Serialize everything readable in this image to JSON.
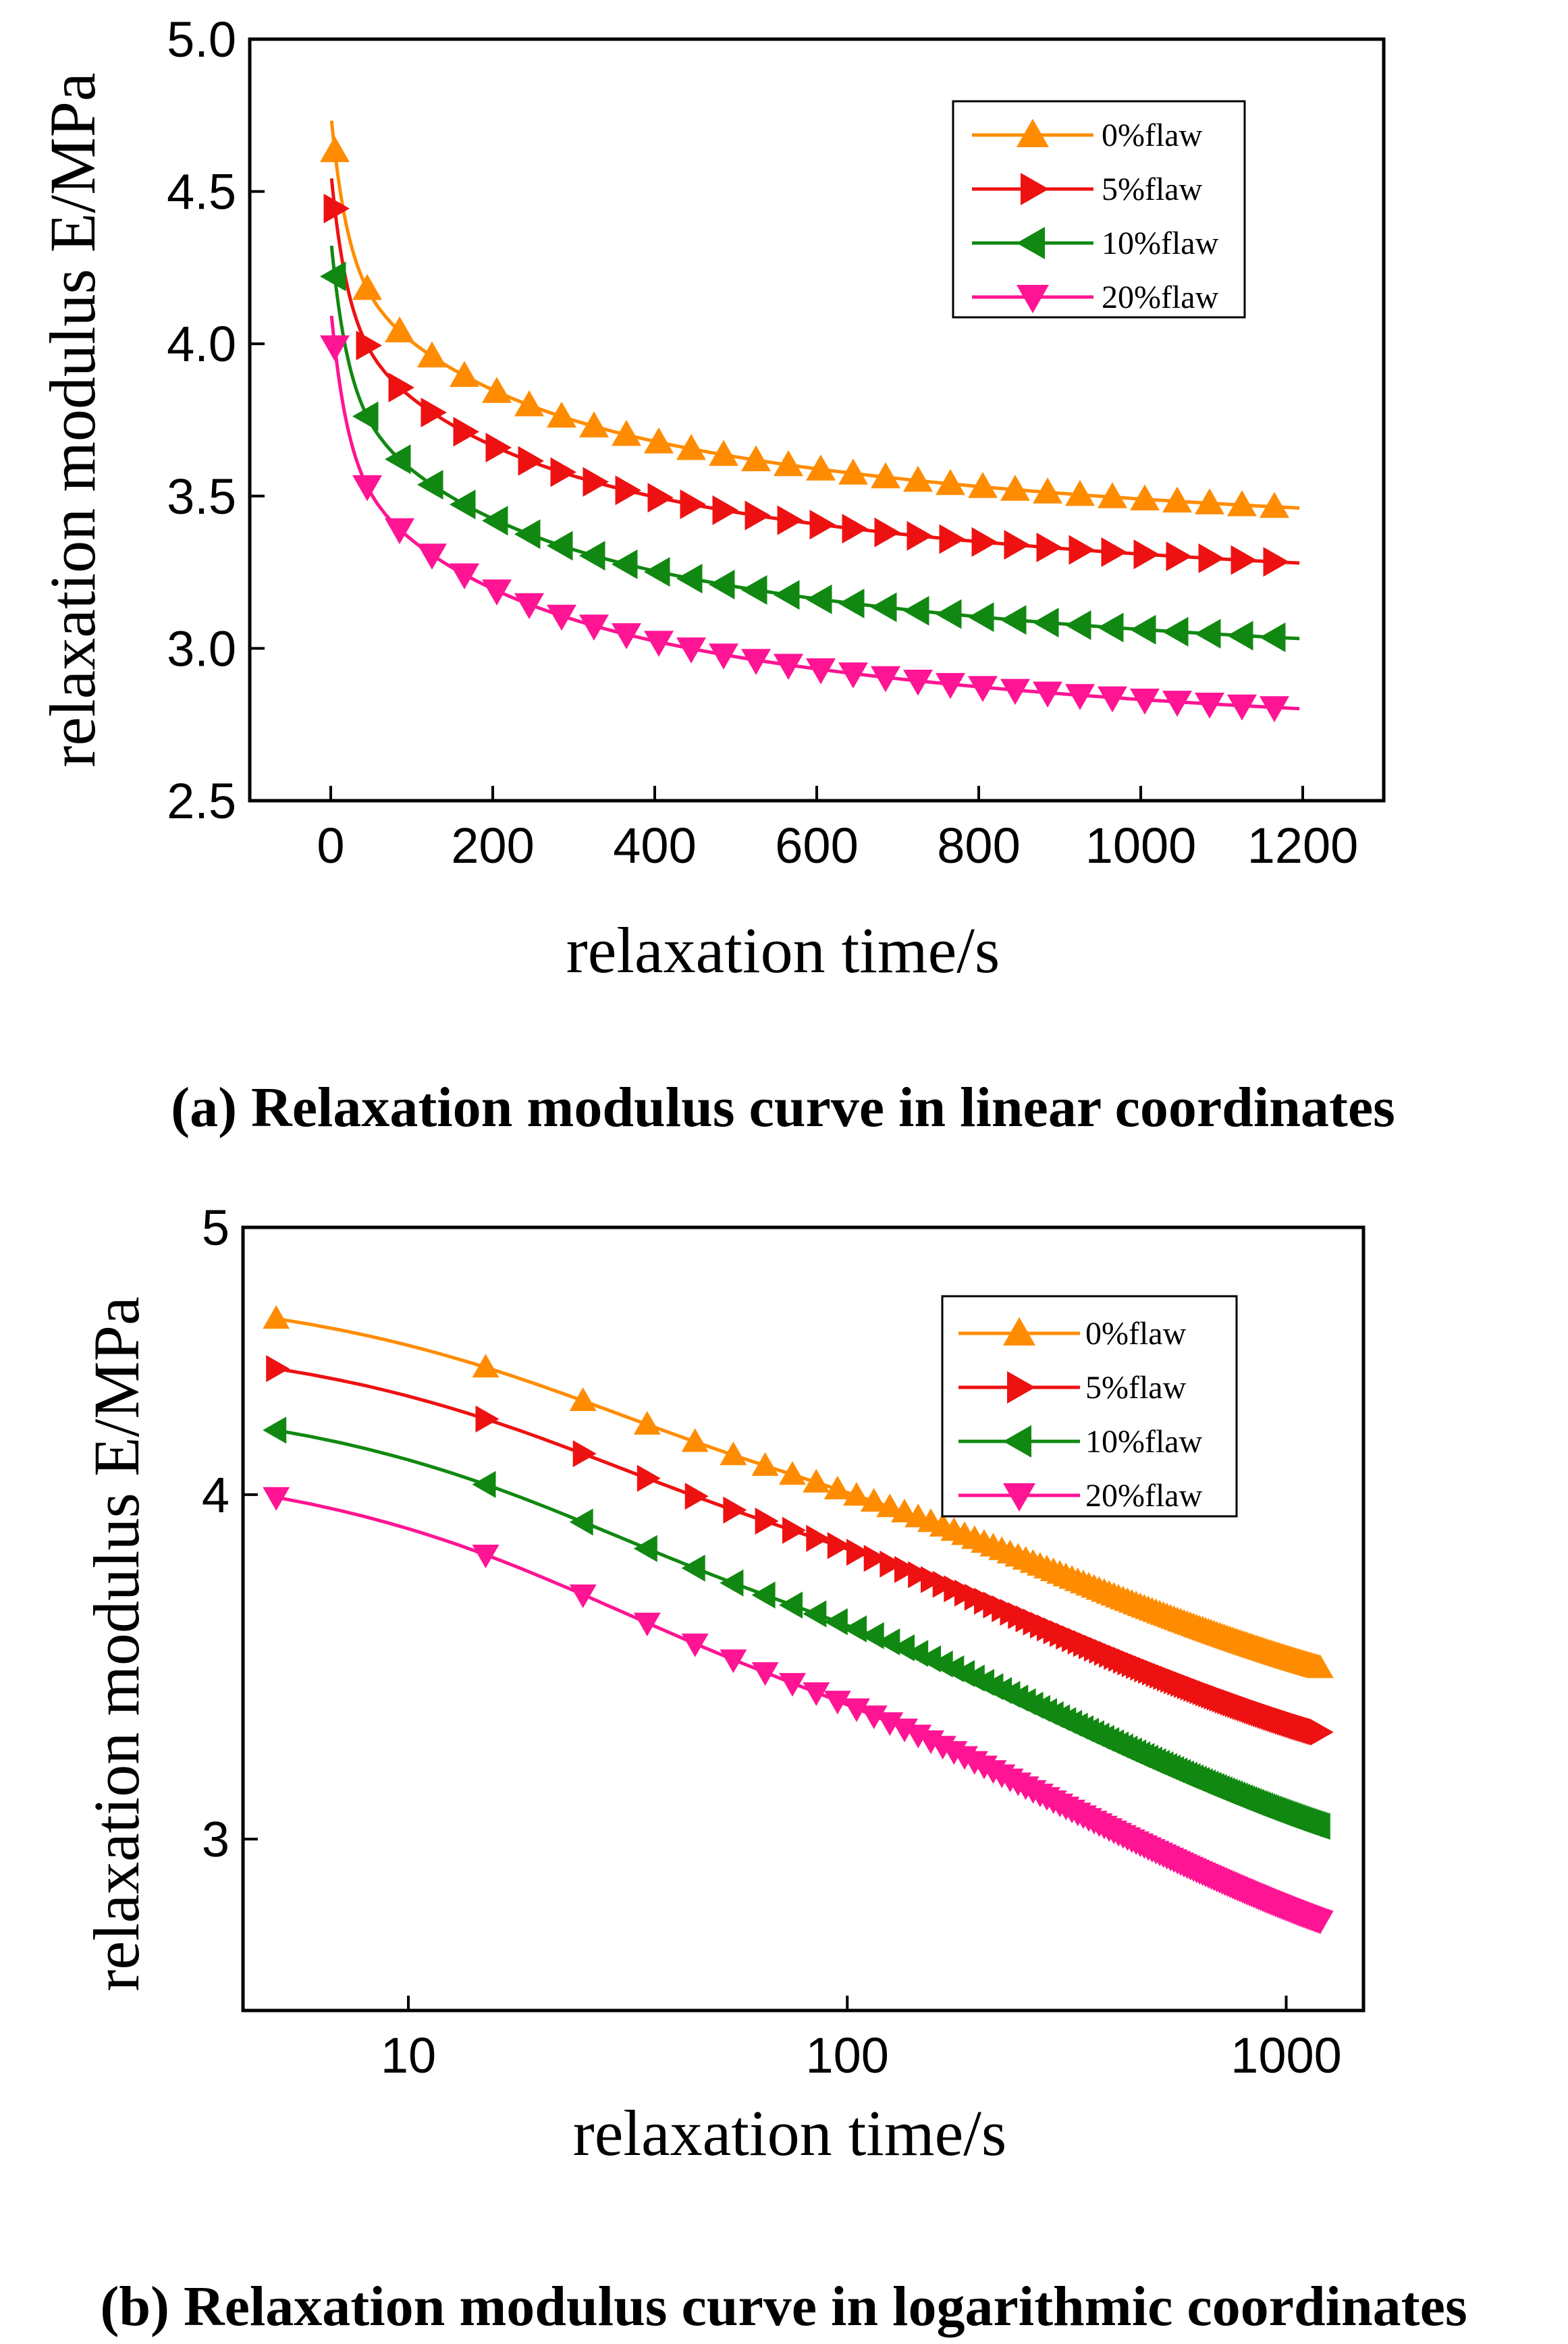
{
  "chart_data": [
    {
      "type": "line",
      "caption": "(a) Relaxation modulus curve in linear coordinates",
      "xlabel": "relaxation time/s",
      "ylabel": "relaxation modulus E/MPa",
      "xscale": "linear",
      "xlim": [
        -100,
        1300
      ],
      "ylim": [
        2.5,
        5.0
      ],
      "xticks": [
        0,
        200,
        400,
        600,
        800,
        1000,
        1200
      ],
      "xtick_labels": [
        "0",
        "200",
        "400",
        "600",
        "800",
        "1000",
        "1200"
      ],
      "yticks": [
        2.5,
        3.0,
        3.5,
        4.0,
        4.5,
        5.0
      ],
      "ytick_labels": [
        "2.5",
        "3.0",
        "3.5",
        "4.0",
        "4.5",
        "5.0"
      ],
      "legend_position": "top-right",
      "series": [
        {
          "name": "0%flaw",
          "color": "#ff8c00",
          "marker": "triangle-up",
          "e0": 4.76,
          "einf": 3.37
        },
        {
          "name": "5%flaw",
          "color": "#ee1111",
          "marker": "triangle-right",
          "e0": 4.57,
          "einf": 3.19
        },
        {
          "name": "10%flaw",
          "color": "#118811",
          "marker": "triangle-left",
          "e0": 4.35,
          "einf": 2.94
        },
        {
          "name": "20%flaw",
          "color": "#ff1493",
          "marker": "triangle-down",
          "e0": 4.12,
          "einf": 2.71
        }
      ]
    },
    {
      "type": "line",
      "caption": "(b) Relaxation modulus curve in logarithmic coordinates",
      "xlabel": "relaxation time/s",
      "ylabel": "relaxation modulus E/MPa",
      "xscale": "log",
      "yscale": "log",
      "xlim": [
        4.2,
        1500
      ],
      "ylim": [
        2.6,
        5.0
      ],
      "xticks": [
        10,
        100,
        1000
      ],
      "xtick_labels": [
        "10",
        "100",
        "1000"
      ],
      "yticks": [
        3,
        4,
        5
      ],
      "ytick_labels": [
        "3",
        "4",
        "5"
      ],
      "legend_position": "top-right",
      "series": [
        {
          "name": "0%flaw",
          "color": "#ff8c00",
          "marker": "triangle-up",
          "e0": 4.76,
          "einf": 3.37
        },
        {
          "name": "5%flaw",
          "color": "#ee1111",
          "marker": "triangle-right",
          "e0": 4.57,
          "einf": 3.19
        },
        {
          "name": "10%flaw",
          "color": "#118811",
          "marker": "triangle-left",
          "e0": 4.35,
          "einf": 2.94
        },
        {
          "name": "20%flaw",
          "color": "#ff1493",
          "marker": "triangle-down",
          "e0": 4.12,
          "einf": 2.71
        }
      ],
      "time_points_s": [
        5,
        15,
        25,
        35,
        45,
        55,
        65,
        75,
        85,
        95,
        105,
        115,
        125
      ]
    }
  ]
}
